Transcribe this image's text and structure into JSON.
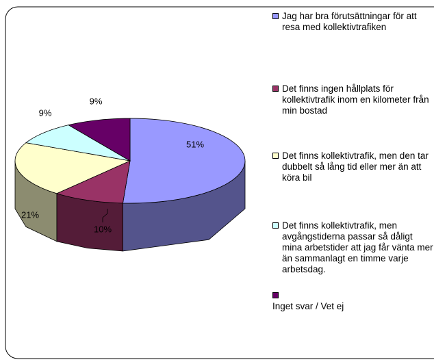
{
  "chart_data": {
    "type": "pie3d",
    "series": [
      {
        "name": "Jag har bra förutsättningar för att resa med kollektivtrafiken",
        "color": "#9999ff"
      },
      {
        "name": "Det finns ingen hållplats för kollektivtrafik inom en kilometer från min bostad",
        "color": "#993366"
      },
      {
        "name": "Det finns kollektivtrafik, men den tar dubbelt så lång tid eller mer än att köra bil",
        "color": "#ffffcc"
      },
      {
        "name": "Det finns kollektivtrafik, men avgångstiderna passar så dåligt mina arbetstider att jag får vänta mer än sammanlagt en timme varje arbetsdag.",
        "color": "#ccffff"
      },
      {
        "name": "Inget svar / Vet ej",
        "color": "#660066"
      }
    ],
    "values": [
      51,
      10,
      21,
      9,
      9
    ],
    "value_labels": [
      "51%",
      "10%",
      "21%",
      "9%",
      "9%"
    ]
  }
}
